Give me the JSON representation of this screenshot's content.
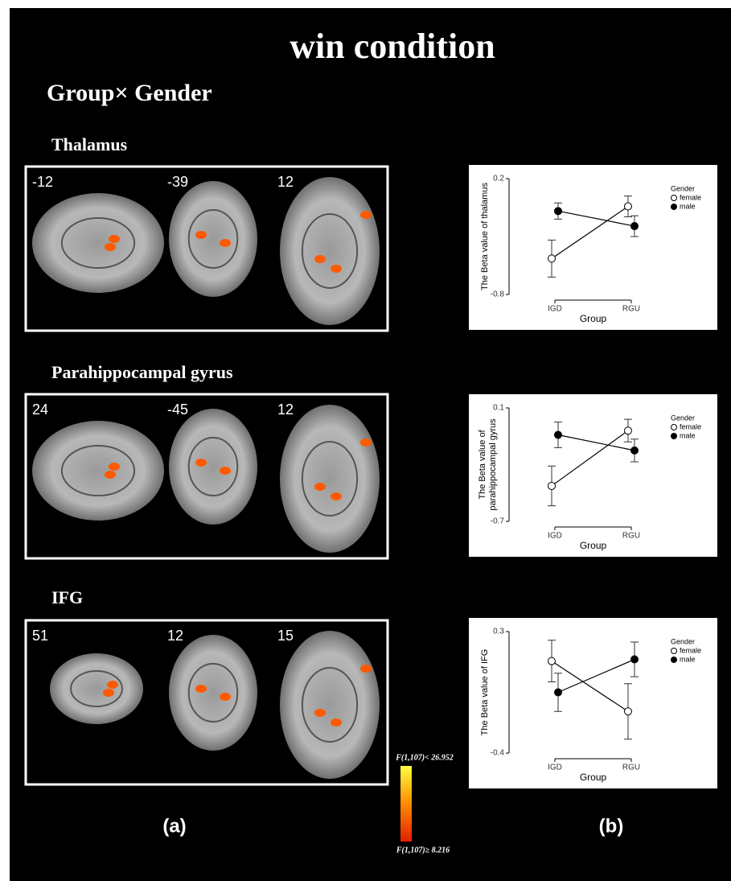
{
  "figure": {
    "title": "win condition",
    "subtitle": "Group× Gender",
    "rows": [
      {
        "label": "Thalamus",
        "slices": [
          "-12",
          "-39",
          "12"
        ]
      },
      {
        "label": "Parahippocampal gyrus",
        "slices": [
          "24",
          "-45",
          "12"
        ]
      },
      {
        "label": "IFG",
        "slices": [
          "51",
          "12",
          "15"
        ]
      }
    ],
    "colorbar": {
      "top_label": "F(1,107)< 26.952",
      "bottom_label": "F(1,107)≥ 8.216"
    },
    "panel_labels": [
      "(a)",
      "(b)"
    ]
  },
  "chart_data": [
    {
      "type": "line",
      "categories": [
        "IGD",
        "RGU"
      ],
      "xlabel": "Group",
      "ylabel": "The Beta value of thalamus",
      "ylim": [
        -0.8,
        0.2
      ],
      "yticks": [
        -0.8,
        0.2
      ],
      "legend_title": "Gender",
      "legend": "right",
      "series": [
        {
          "name": "female",
          "color": "#ffffff",
          "values": [
            -0.49,
            -0.04
          ],
          "errors": [
            0.16,
            0.09
          ]
        },
        {
          "name": "male",
          "color": "#000000",
          "values": [
            -0.08,
            -0.21
          ],
          "errors": [
            0.07,
            0.09
          ]
        }
      ]
    },
    {
      "type": "line",
      "categories": [
        "IGD",
        "RGU"
      ],
      "xlabel": "Group",
      "ylabel": [
        "The Beta value of",
        "parahippocampal gyrus"
      ],
      "ylim": [
        -0.7,
        0.1
      ],
      "yticks": [
        -0.7,
        0.1
      ],
      "legend_title": "Gender",
      "legend": "right",
      "series": [
        {
          "name": "female",
          "color": "#ffffff",
          "values": [
            -0.45,
            -0.06
          ],
          "errors": [
            0.14,
            0.08
          ]
        },
        {
          "name": "male",
          "color": "#000000",
          "values": [
            -0.09,
            -0.2
          ],
          "errors": [
            0.09,
            0.08
          ]
        }
      ]
    },
    {
      "type": "line",
      "categories": [
        "IGD",
        "RGU"
      ],
      "xlabel": "Group",
      "ylabel": "The Beta value of IFG",
      "ylim": [
        -0.4,
        0.3
      ],
      "yticks": [
        -0.4,
        0.3
      ],
      "legend_title": "Gender",
      "legend": "right",
      "series": [
        {
          "name": "female",
          "color": "#ffffff",
          "values": [
            0.13,
            -0.16
          ],
          "errors": [
            0.12,
            0.16
          ]
        },
        {
          "name": "male",
          "color": "#000000",
          "values": [
            -0.05,
            0.14
          ],
          "errors": [
            0.11,
            0.1
          ]
        }
      ]
    }
  ]
}
